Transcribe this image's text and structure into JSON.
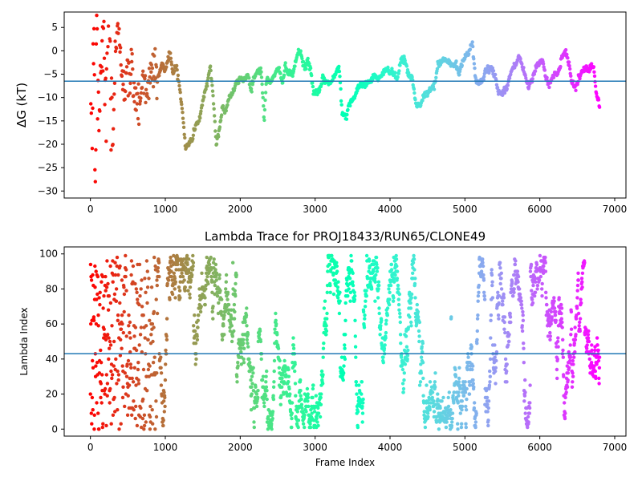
{
  "chart_data": [
    {
      "type": "scatter",
      "title": "",
      "xlabel": "",
      "ylabel": "ΔG (kT)",
      "xlim": [
        -350,
        7150
      ],
      "ylim": [
        -31.5,
        8.3
      ],
      "xticks": [
        0,
        1000,
        2000,
        3000,
        4000,
        5000,
        6000,
        7000
      ],
      "yticks": [
        5,
        0,
        -5,
        -10,
        -15,
        -20,
        -25,
        -30
      ],
      "hline": -6.5,
      "color_map": "rainbow (red at frame 0 → violet at last frame)",
      "n_frames": 6800,
      "trace_keypoints": [
        [
          0,
          5
        ],
        [
          20,
          -30
        ],
        [
          40,
          7
        ],
        [
          60,
          -25
        ],
        [
          80,
          0
        ],
        [
          100,
          -15
        ],
        [
          130,
          -8
        ],
        [
          160,
          3
        ],
        [
          200,
          -10
        ],
        [
          240,
          7
        ],
        [
          280,
          -8
        ],
        [
          300,
          -19
        ],
        [
          330,
          -2
        ],
        [
          380,
          5
        ],
        [
          420,
          -3
        ],
        [
          460,
          -7
        ],
        [
          500,
          -6
        ],
        [
          560,
          -4
        ],
        [
          600,
          -9
        ],
        [
          640,
          -11
        ],
        [
          690,
          -7
        ],
        [
          730,
          -6
        ],
        [
          780,
          -8
        ],
        [
          820,
          -5
        ],
        [
          860,
          -3
        ],
        [
          900,
          -6
        ],
        [
          950,
          -3
        ],
        [
          1000,
          -4
        ],
        [
          1060,
          0
        ],
        [
          1100,
          -5
        ],
        [
          1150,
          -3
        ],
        [
          1200,
          -9
        ],
        [
          1240,
          -15
        ],
        [
          1270,
          -21
        ],
        [
          1300,
          -20
        ],
        [
          1360,
          -19
        ],
        [
          1400,
          -16
        ],
        [
          1450,
          -15
        ],
        [
          1500,
          -11
        ],
        [
          1560,
          -7
        ],
        [
          1600,
          -3
        ],
        [
          1640,
          -10
        ],
        [
          1680,
          -20
        ],
        [
          1720,
          -17
        ],
        [
          1760,
          -12
        ],
        [
          1800,
          -13
        ],
        [
          1850,
          -10
        ],
        [
          1900,
          -9
        ],
        [
          1950,
          -7
        ],
        [
          2000,
          -6
        ],
        [
          2060,
          -6
        ],
        [
          2100,
          -5
        ],
        [
          2140,
          -8
        ],
        [
          2180,
          -6
        ],
        [
          2220,
          -4.5
        ],
        [
          2280,
          -4
        ],
        [
          2320,
          -15
        ],
        [
          2350,
          -6
        ],
        [
          2400,
          -7
        ],
        [
          2450,
          -5
        ],
        [
          2520,
          -4
        ],
        [
          2560,
          -7
        ],
        [
          2600,
          -3
        ],
        [
          2640,
          -5
        ],
        [
          2700,
          -5
        ],
        [
          2760,
          -1
        ],
        [
          2800,
          0
        ],
        [
          2830,
          -2
        ],
        [
          2860,
          -4
        ],
        [
          2900,
          -2
        ],
        [
          2940,
          -4
        ],
        [
          2980,
          -9
        ],
        [
          3050,
          -9
        ],
        [
          3100,
          -6
        ],
        [
          3200,
          -7
        ],
        [
          3260,
          -5.5
        ],
        [
          3320,
          -3
        ],
        [
          3360,
          -13
        ],
        [
          3420,
          -14
        ],
        [
          3460,
          -11
        ],
        [
          3520,
          -10
        ],
        [
          3580,
          -8
        ],
        [
          3640,
          -7
        ],
        [
          3700,
          -7
        ],
        [
          3760,
          -6
        ],
        [
          3800,
          -5
        ],
        [
          3840,
          -6
        ],
        [
          3900,
          -5
        ],
        [
          3960,
          -4
        ],
        [
          4040,
          -4.5
        ],
        [
          4100,
          -6
        ],
        [
          4140,
          -2
        ],
        [
          4200,
          -2
        ],
        [
          4240,
          -5
        ],
        [
          4300,
          -6
        ],
        [
          4340,
          -11
        ],
        [
          4400,
          -12
        ],
        [
          4440,
          -10
        ],
        [
          4500,
          -9
        ],
        [
          4560,
          -8
        ],
        [
          4600,
          -7
        ],
        [
          4640,
          -3
        ],
        [
          4700,
          -2
        ],
        [
          4760,
          -2
        ],
        [
          4820,
          -3
        ],
        [
          4880,
          -3
        ],
        [
          4920,
          -5
        ],
        [
          4980,
          -2
        ],
        [
          5050,
          0
        ],
        [
          5100,
          1.5
        ],
        [
          5150,
          -7
        ],
        [
          5200,
          -7
        ],
        [
          5260,
          -5
        ],
        [
          5300,
          -4
        ],
        [
          5360,
          -4
        ],
        [
          5400,
          -5
        ],
        [
          5450,
          -9
        ],
        [
          5500,
          -9
        ],
        [
          5560,
          -8
        ],
        [
          5620,
          -4
        ],
        [
          5680,
          -3
        ],
        [
          5720,
          -1
        ],
        [
          5760,
          -3
        ],
        [
          5800,
          -5
        ],
        [
          5850,
          -8
        ],
        [
          5900,
          -6
        ],
        [
          5960,
          -3
        ],
        [
          6040,
          -2
        ],
        [
          6080,
          -6
        ],
        [
          6120,
          -7
        ],
        [
          6160,
          -6
        ],
        [
          6200,
          -5
        ],
        [
          6260,
          -4
        ],
        [
          6300,
          -1
        ],
        [
          6340,
          0
        ],
        [
          6380,
          -2
        ],
        [
          6420,
          -6
        ],
        [
          6480,
          -8
        ],
        [
          6540,
          -5
        ],
        [
          6600,
          -4
        ],
        [
          6660,
          -4
        ],
        [
          6720,
          -3
        ],
        [
          6750,
          -9
        ],
        [
          6800,
          -11.5
        ]
      ]
    },
    {
      "type": "scatter",
      "title": "Lambda Trace for PROJ18433/RUN65/CLONE49",
      "xlabel": "Frame Index",
      "ylabel": "Lambda Index",
      "xlim": [
        -350,
        7150
      ],
      "ylim": [
        -4,
        104
      ],
      "xticks": [
        0,
        1000,
        2000,
        3000,
        4000,
        5000,
        6000,
        7000
      ],
      "yticks": [
        0,
        20,
        40,
        60,
        80,
        100
      ],
      "hline": 43,
      "color_map": "rainbow (red at frame 0 → violet at last frame)",
      "n_frames": 6800,
      "lambda_range": [
        0,
        99
      ]
    }
  ]
}
